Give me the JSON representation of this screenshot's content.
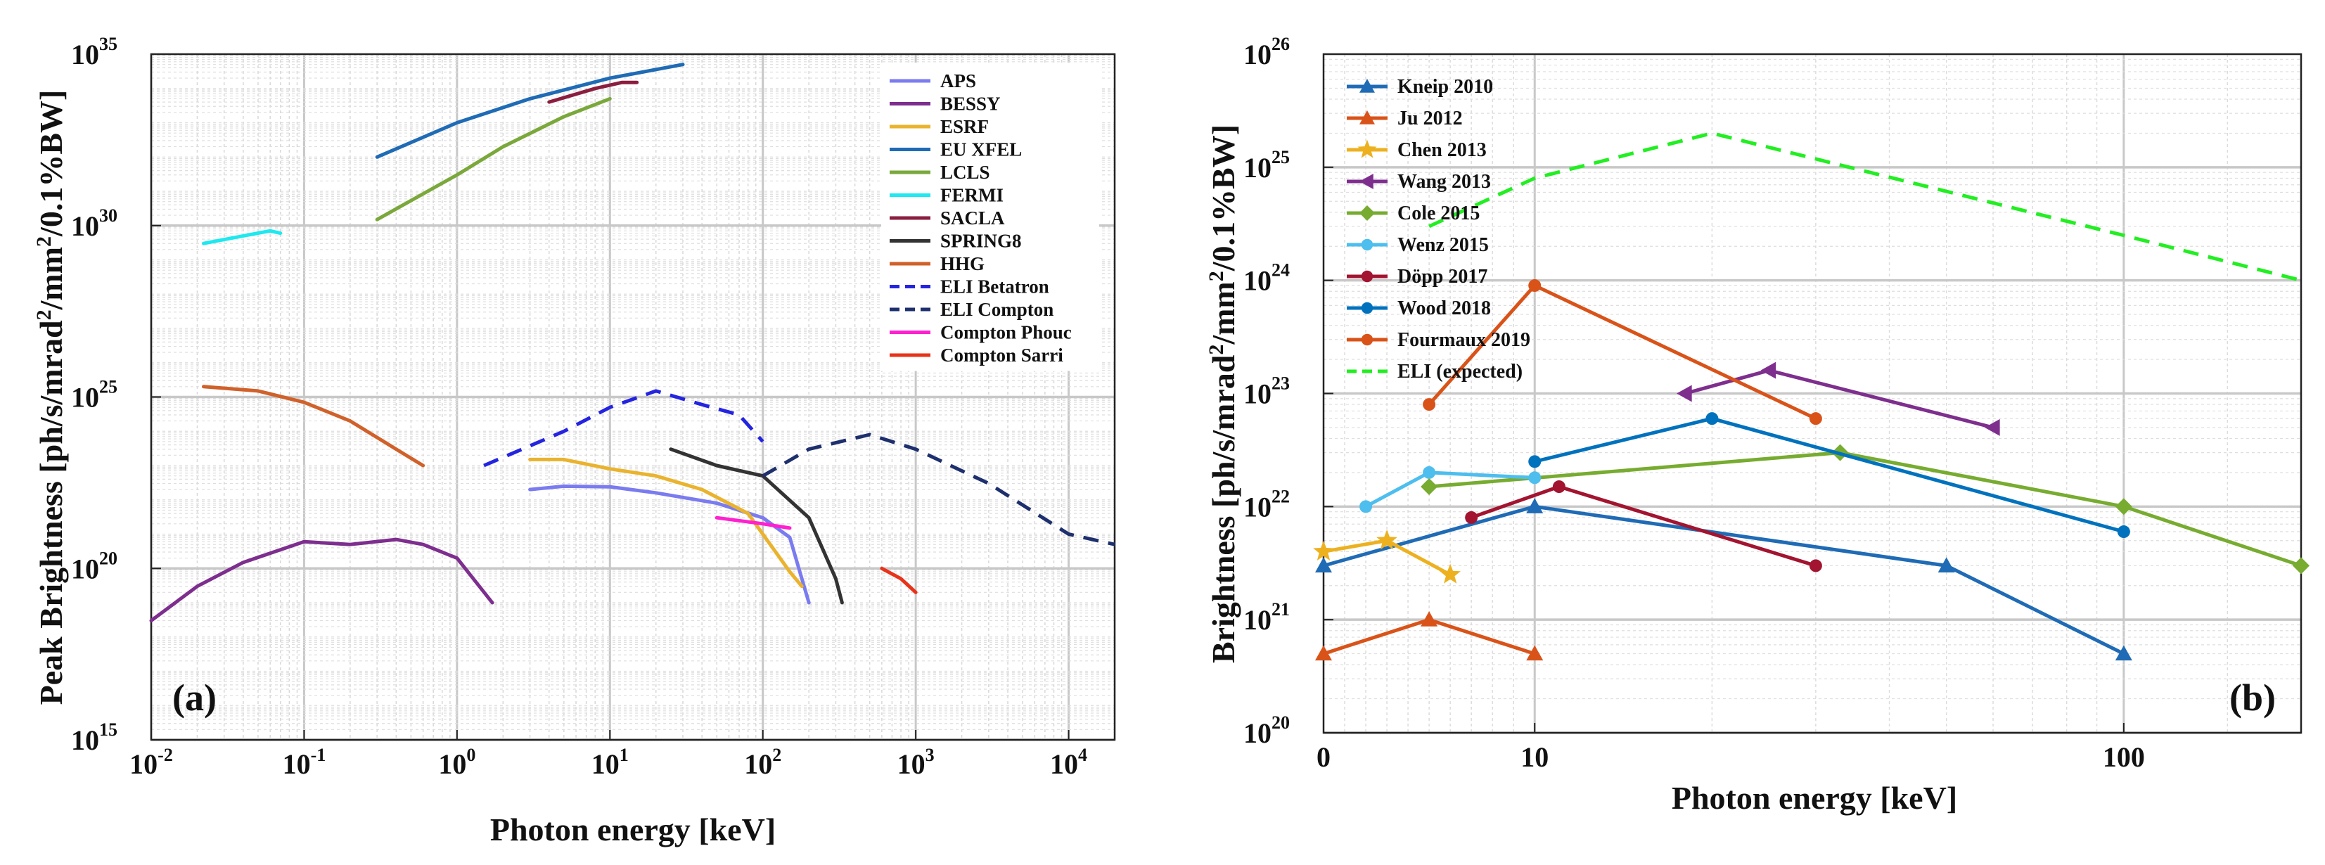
{
  "chart_data": [
    {
      "type": "line",
      "panel_label": "(a)",
      "xscale": "log",
      "yscale": "log",
      "xlabel": "Photon energy [keV]",
      "ylabel_parts": [
        "Peak Brightness [ph/s/mrad",
        "2",
        "/mm",
        "2",
        "/0.1%BW]"
      ],
      "xlim": [
        0.01,
        20000
      ],
      "ylim": [
        1000000000000000.0,
        1e+35
      ],
      "grid": true,
      "legend_position": "top-right",
      "x_ticks": [
        {
          "value": 0.01,
          "base": "10",
          "exp": "-2"
        },
        {
          "value": 0.1,
          "base": "10",
          "exp": "-1"
        },
        {
          "value": 1,
          "base": "10",
          "exp": "0"
        },
        {
          "value": 10,
          "base": "10",
          "exp": "1"
        },
        {
          "value": 100,
          "base": "10",
          "exp": "2"
        },
        {
          "value": 1000,
          "base": "10",
          "exp": "3"
        },
        {
          "value": 10000,
          "base": "10",
          "exp": "4"
        }
      ],
      "y_ticks": [
        {
          "value": 1000000000000000.0,
          "base": "10",
          "exp": "15"
        },
        {
          "value": 1e+20,
          "base": "10",
          "exp": "20"
        },
        {
          "value": 1e+25,
          "base": "10",
          "exp": "25"
        },
        {
          "value": 1e+30,
          "base": "10",
          "exp": "30"
        },
        {
          "value": 1e+35,
          "base": "10",
          "exp": "35"
        }
      ],
      "series": [
        {
          "name": "APS",
          "color": "#7b7bf0",
          "dash": "solid",
          "x": [
            3,
            5,
            10,
            20,
            50,
            100,
            150,
            200
          ],
          "y": [
            2e+22,
            2.5e+22,
            2.4e+22,
            1.6e+22,
            8e+21,
            3e+21,
            8e+20,
            1e+19
          ]
        },
        {
          "name": "BESSY",
          "color": "#7d2e8e",
          "dash": "solid",
          "x": [
            0.01,
            0.02,
            0.04,
            0.1,
            0.2,
            0.4,
            0.6,
            1,
            1.7
          ],
          "y": [
            3e+18,
            3e+19,
            1.5e+20,
            6e+20,
            5e+20,
            7e+20,
            5e+20,
            2e+20,
            1e+19
          ]
        },
        {
          "name": "ESRF",
          "color": "#eab32e",
          "dash": "solid",
          "x": [
            3,
            5,
            10,
            20,
            40,
            80,
            150,
            180
          ],
          "y": [
            1.5e+23,
            1.5e+23,
            8e+22,
            5e+22,
            2e+22,
            4e+21,
            8e+19,
            3e+19
          ]
        },
        {
          "name": "EU XFEL",
          "color": "#1f6bb5",
          "dash": "solid",
          "x": [
            0.3,
            1,
            3,
            10,
            30
          ],
          "y": [
            1e+32,
            1e+33,
            5e+33,
            2e+34,
            5e+34
          ]
        },
        {
          "name": "LCLS",
          "color": "#7aa83b",
          "dash": "solid",
          "x": [
            0.3,
            1,
            2,
            5,
            10
          ],
          "y": [
            1.5e+30,
            3e+31,
            2e+32,
            1.5e+33,
            5e+33
          ]
        },
        {
          "name": "FERMI",
          "color": "#1ee8f0",
          "dash": "solid",
          "x": [
            0.022,
            0.04,
            0.06,
            0.07
          ],
          "y": [
            3e+29,
            5e+29,
            7e+29,
            6e+29
          ]
        },
        {
          "name": "SACLA",
          "color": "#8b1e3f",
          "dash": "solid",
          "x": [
            4,
            8,
            12,
            15
          ],
          "y": [
            4e+33,
            1e+34,
            1.5e+34,
            1.5e+34
          ]
        },
        {
          "name": "SPRING8",
          "color": "#333333",
          "dash": "solid",
          "x": [
            25,
            50,
            100,
            200,
            300,
            330
          ],
          "y": [
            3e+23,
            1e+23,
            5e+22,
            3e+21,
            5e+19,
            1e+19
          ]
        },
        {
          "name": "HHG",
          "color": "#d0612a",
          "dash": "solid",
          "x": [
            0.022,
            0.05,
            0.1,
            0.2,
            0.4,
            0.6
          ],
          "y": [
            2e+25,
            1.5e+25,
            7e+24,
            2e+24,
            3e+23,
            1e+23
          ]
        },
        {
          "name": "ELI Betatron",
          "color": "#2424e0",
          "dash": "dashed",
          "x": [
            1.5,
            5,
            10,
            20,
            40,
            70,
            100
          ],
          "y": [
            1e+23,
            1e+24,
            5e+24,
            1.5e+25,
            6e+24,
            3e+24,
            5e+23
          ]
        },
        {
          "name": "ELI Compton",
          "color": "#1e2f6e",
          "dash": "dashed",
          "x": [
            100,
            200,
            500,
            1000,
            3000,
            10000,
            20000
          ],
          "y": [
            5e+22,
            3e+23,
            8e+23,
            3e+23,
            3e+22,
            1e+21,
            5e+20
          ]
        },
        {
          "name": "Compton Phouc",
          "color": "#ff20d0",
          "dash": "solid",
          "x": [
            50,
            100,
            150
          ],
          "y": [
            3e+21,
            2e+21,
            1.5e+21
          ]
        },
        {
          "name": "Compton Sarri",
          "color": "#e8331a",
          "dash": "solid",
          "x": [
            600,
            800,
            1000
          ],
          "y": [
            1e+20,
            5e+19,
            2e+19
          ]
        }
      ]
    },
    {
      "type": "line",
      "panel_label": "(b)",
      "xscale": "linear",
      "yscale": "log",
      "xlabel": "Photon energy [keV]",
      "ylabel_parts": [
        "Brightness [ph/s/mrad",
        "2",
        "/mm",
        "2",
        "/0.1%BW]"
      ],
      "xlim": [
        0,
        200
      ],
      "ylim": [
        1e+20,
        1e+26
      ],
      "grid": true,
      "legend_position": "top-left",
      "x_ticks": [
        {
          "value": 0,
          "label": "0"
        },
        {
          "value": 10,
          "label": "10"
        },
        {
          "value": 100,
          "label": "100"
        }
      ],
      "y_ticks": [
        {
          "value": 1e+20,
          "base": "10",
          "exp": "20"
        },
        {
          "value": 1e+21,
          "base": "10",
          "exp": "21"
        },
        {
          "value": 1e+22,
          "base": "10",
          "exp": "22"
        },
        {
          "value": 1e+23,
          "base": "10",
          "exp": "23"
        },
        {
          "value": 1e+24,
          "base": "10",
          "exp": "24"
        },
        {
          "value": 1e+25,
          "base": "10",
          "exp": "25"
        },
        {
          "value": 1e+26,
          "base": "10",
          "exp": "26"
        }
      ],
      "series": [
        {
          "name": "Kneip 2010",
          "color": "#1f6bb5",
          "marker": "triangle",
          "dash": "solid",
          "x": [
            0,
            10,
            50,
            100
          ],
          "y": [
            3e+21,
            1e+22,
            3e+21,
            5e+20
          ]
        },
        {
          "name": "Ju 2012",
          "color": "#d95319",
          "marker": "triangle",
          "dash": "solid",
          "x": [
            0,
            5,
            10
          ],
          "y": [
            5e+20,
            1e+21,
            5e+20
          ]
        },
        {
          "name": "Chen 2013",
          "color": "#edb120",
          "marker": "star",
          "dash": "solid",
          "x": [
            0,
            3,
            6
          ],
          "y": [
            4e+21,
            5e+21,
            2.5e+21
          ]
        },
        {
          "name": "Wang 2013",
          "color": "#7e2f8e",
          "marker": "triangle-left",
          "dash": "solid",
          "x": [
            18,
            25,
            60
          ],
          "y": [
            1e+23,
            1.6e+23,
            5e+22
          ]
        },
        {
          "name": "Cole 2015",
          "color": "#77ac30",
          "marker": "diamond",
          "dash": "solid",
          "x": [
            5,
            33,
            100,
            200
          ],
          "y": [
            1.5e+22,
            3e+22,
            1e+22,
            3e+21
          ]
        },
        {
          "name": "Wenz 2015",
          "color": "#4dbeee",
          "marker": "circle",
          "dash": "solid",
          "x": [
            2,
            5,
            10
          ],
          "y": [
            1e+22,
            2e+22,
            1.8e+22
          ]
        },
        {
          "name": "Döpp 2017",
          "color": "#a2142f",
          "marker": "circle",
          "dash": "solid",
          "x": [
            7,
            11,
            30
          ],
          "y": [
            8e+21,
            1.5e+22,
            3e+21
          ]
        },
        {
          "name": "Wood 2018",
          "color": "#0072bd",
          "marker": "circle",
          "dash": "solid",
          "x": [
            10,
            20,
            100
          ],
          "y": [
            2.5e+22,
            6e+22,
            6e+21
          ]
        },
        {
          "name": "Fourmaux 2019",
          "color": "#d95319",
          "marker": "circle",
          "dash": "solid",
          "x": [
            5,
            10,
            30
          ],
          "y": [
            8e+22,
            9e+23,
            6e+22
          ]
        },
        {
          "name": "ELI (expected)",
          "color": "#22ee22",
          "marker": "none",
          "dash": "dashed",
          "x": [
            5,
            10,
            20,
            100,
            200
          ],
          "y": [
            3e+24,
            8e+24,
            2e+25,
            2.5e+24,
            1e+24
          ]
        }
      ]
    }
  ]
}
